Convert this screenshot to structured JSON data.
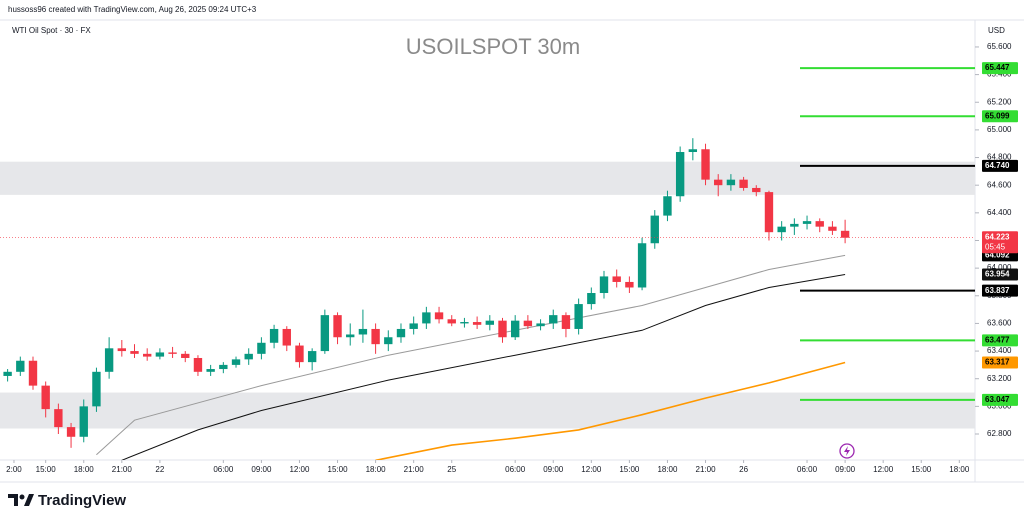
{
  "chart_data": {
    "type": "candlestick",
    "credit": "hussoss96 created with TradingView.com, Aug 26, 2025 09:24 UTC+3",
    "symbol": "WTI Oil Spot · 30 · FX",
    "title": "USOILSPOT 30m",
    "currency": "USD",
    "brand": "TradingView",
    "up_color": "#089981",
    "down_color": "#f23645",
    "open": [
      63.22,
      63.25,
      63.33,
      63.15,
      62.98,
      62.85,
      62.78,
      63.0,
      63.25,
      63.42,
      63.4,
      63.38,
      63.36,
      63.39,
      63.38,
      63.35,
      63.25,
      63.27,
      63.3,
      63.34,
      63.38,
      63.46,
      63.56,
      63.44,
      63.32,
      63.4,
      63.66,
      63.5,
      63.52,
      63.56,
      63.45,
      63.5,
      63.56,
      63.6,
      63.68,
      63.63,
      63.6,
      63.61,
      63.59,
      63.62,
      63.5,
      63.62,
      63.58,
      63.6,
      63.66,
      63.56,
      63.74,
      63.82,
      63.94,
      63.9,
      63.86,
      64.18,
      64.38,
      64.52,
      64.84,
      64.86,
      64.64,
      64.6,
      64.64,
      64.58,
      64.55,
      64.26,
      64.3,
      64.32,
      64.34,
      64.3,
      64.27
    ],
    "high": [
      63.27,
      63.36,
      63.36,
      63.18,
      63.02,
      62.88,
      63.05,
      63.28,
      63.5,
      63.48,
      63.45,
      63.42,
      63.42,
      63.43,
      63.4,
      63.37,
      63.3,
      63.32,
      63.36,
      63.42,
      63.5,
      63.59,
      63.58,
      63.46,
      63.42,
      63.7,
      63.68,
      63.6,
      63.7,
      63.6,
      63.55,
      63.6,
      63.65,
      63.72,
      63.72,
      63.66,
      63.64,
      63.65,
      63.66,
      63.64,
      63.66,
      63.66,
      63.63,
      63.7,
      63.68,
      63.78,
      63.86,
      63.98,
      63.99,
      63.94,
      64.22,
      64.42,
      64.56,
      64.88,
      64.94,
      64.9,
      64.68,
      64.68,
      64.66,
      64.6,
      64.56,
      64.34,
      64.36,
      64.38,
      64.36,
      64.34,
      64.35
    ],
    "low": [
      63.18,
      63.22,
      63.12,
      62.92,
      62.8,
      62.7,
      62.74,
      62.96,
      63.2,
      63.36,
      63.35,
      63.33,
      63.34,
      63.35,
      63.32,
      63.22,
      63.22,
      63.24,
      63.28,
      63.3,
      63.34,
      63.42,
      63.4,
      63.28,
      63.26,
      63.38,
      63.45,
      63.44,
      63.46,
      63.38,
      63.4,
      63.46,
      63.52,
      63.56,
      63.6,
      63.58,
      63.57,
      63.56,
      63.55,
      63.46,
      63.48,
      63.56,
      63.55,
      63.56,
      63.5,
      63.52,
      63.7,
      63.78,
      63.86,
      63.82,
      63.84,
      64.14,
      64.34,
      64.48,
      64.78,
      64.6,
      64.52,
      64.56,
      64.56,
      64.52,
      64.2,
      64.2,
      64.24,
      64.28,
      64.26,
      64.24,
      64.18
    ],
    "close": [
      63.25,
      63.33,
      63.15,
      62.98,
      62.85,
      62.78,
      63.0,
      63.25,
      63.42,
      63.4,
      63.38,
      63.36,
      63.39,
      63.38,
      63.35,
      63.25,
      63.27,
      63.3,
      63.34,
      63.38,
      63.46,
      63.56,
      63.44,
      63.32,
      63.4,
      63.66,
      63.5,
      63.52,
      63.56,
      63.45,
      63.5,
      63.56,
      63.6,
      63.68,
      63.63,
      63.6,
      63.61,
      63.59,
      63.62,
      63.5,
      63.62,
      63.58,
      63.6,
      63.66,
      63.56,
      63.74,
      63.82,
      63.94,
      63.9,
      63.86,
      64.18,
      64.38,
      64.52,
      64.84,
      64.86,
      64.64,
      64.6,
      64.64,
      64.58,
      64.55,
      64.26,
      64.3,
      64.32,
      64.34,
      64.3,
      64.27,
      64.22
    ],
    "last_price": 64.223,
    "countdown": "05:45",
    "moving_averages": [
      {
        "color": "#9a9a9a",
        "x": [
          7,
          10,
          20,
          30,
          40,
          50,
          55,
          60,
          66
        ],
        "values": [
          62.65,
          62.9,
          63.15,
          63.37,
          63.55,
          63.73,
          63.86,
          63.99,
          64.092
        ]
      },
      {
        "color": "#111111",
        "x": [
          9,
          15,
          20,
          30,
          40,
          50,
          55,
          60,
          66
        ],
        "values": [
          62.61,
          62.83,
          62.97,
          63.19,
          63.37,
          63.55,
          63.73,
          63.86,
          63.954
        ]
      },
      {
        "color": "#ff9800",
        "x": [
          29,
          35,
          40,
          45,
          50,
          55,
          60,
          66
        ],
        "values": [
          62.61,
          62.72,
          62.77,
          62.83,
          62.94,
          63.06,
          63.17,
          63.317
        ]
      }
    ],
    "levels": [
      {
        "value": 65.447,
        "label": "65.447",
        "color": "#33dd33"
      },
      {
        "value": 65.099,
        "label": "65.099",
        "color": "#33dd33"
      },
      {
        "value": 64.74,
        "label": "64.740",
        "color": "#000000"
      },
      {
        "value": 63.837,
        "label": "63.837",
        "color": "#000000"
      },
      {
        "value": 63.477,
        "label": "63.477",
        "color": "#33dd33"
      },
      {
        "value": 63.047,
        "label": "63.047",
        "color": "#33dd33"
      }
    ],
    "zones": [
      [
        64.53,
        64.77
      ],
      [
        62.84,
        63.1
      ]
    ],
    "ylim": [
      62.612,
      65.795
    ],
    "yticks": [
      {
        "value": 62.8,
        "label": "62.800"
      },
      {
        "value": 63.0,
        "label": "63.000"
      },
      {
        "value": 63.2,
        "label": "63.200"
      },
      {
        "value": 63.4,
        "label": "63.400"
      },
      {
        "value": 63.6,
        "label": "63.600"
      },
      {
        "value": 63.8,
        "label": "63.800"
      },
      {
        "value": 64.0,
        "label": "64.000"
      },
      {
        "value": 64.2,
        "label": "64.200"
      },
      {
        "value": 64.4,
        "label": "64.400"
      },
      {
        "value": 64.6,
        "label": "64.600"
      },
      {
        "value": 64.8,
        "label": "64.800"
      },
      {
        "value": 65.0,
        "label": "65.000"
      },
      {
        "value": 65.2,
        "label": "65.200"
      },
      {
        "value": 65.4,
        "label": "65.400"
      },
      {
        "value": 65.6,
        "label": "65.600"
      }
    ],
    "xlim": [
      -0.6,
      76
    ],
    "xticks": [
      {
        "value": 0.5,
        "label": "2:00"
      },
      {
        "value": 3,
        "label": "15:00"
      },
      {
        "value": 6,
        "label": "18:00"
      },
      {
        "value": 9,
        "label": "21:00"
      },
      {
        "value": 12,
        "label": "22"
      },
      {
        "value": 17,
        "label": "06:00"
      },
      {
        "value": 20,
        "label": "09:00"
      },
      {
        "value": 23,
        "label": "12:00"
      },
      {
        "value": 26,
        "label": "15:00"
      },
      {
        "value": 29,
        "label": "18:00"
      },
      {
        "value": 32,
        "label": "21:00"
      },
      {
        "value": 35,
        "label": "25"
      },
      {
        "value": 40,
        "label": "06:00"
      },
      {
        "value": 43,
        "label": "09:00"
      },
      {
        "value": 46,
        "label": "12:00"
      },
      {
        "value": 49,
        "label": "15:00"
      },
      {
        "value": 52,
        "label": "18:00"
      },
      {
        "value": 55,
        "label": "21:00"
      },
      {
        "value": 58,
        "label": "26"
      },
      {
        "value": 63,
        "label": "06:00"
      },
      {
        "value": 66,
        "label": "09:00"
      },
      {
        "value": 69,
        "label": "12:00"
      },
      {
        "value": 72,
        "label": "15:00"
      },
      {
        "value": 75,
        "label": "18:00"
      }
    ]
  }
}
